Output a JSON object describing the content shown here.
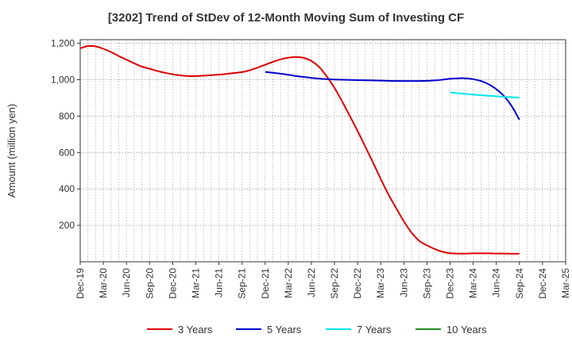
{
  "chart_data": {
    "type": "line",
    "title": "[3202]  Trend of StDev of 12-Month Moving Sum of Investing CF",
    "ylabel": "Amount (million yen)",
    "xlabel": "",
    "ylim": [
      0,
      1220
    ],
    "yticks": [
      200,
      400,
      600,
      800,
      1000,
      1200
    ],
    "ytick_labels": [
      "200",
      "400",
      "600",
      "800",
      "1,000",
      "1,200"
    ],
    "xticks": [
      "Dec-19",
      "Mar-20",
      "Jun-20",
      "Sep-20",
      "Dec-20",
      "Mar-21",
      "Jun-21",
      "Sep-21",
      "Dec-21",
      "Mar-22",
      "Jun-22",
      "Sep-22",
      "Dec-22",
      "Mar-23",
      "Jun-23",
      "Sep-23",
      "Dec-23",
      "Mar-24",
      "Jun-24",
      "Sep-24",
      "Dec-24",
      "Mar-25"
    ],
    "grid": true,
    "legend_position": "bottom",
    "series": [
      {
        "name": "3 Years",
        "color": "#dd0000",
        "x": [
          "Dec-19",
          "Jan-20",
          "Feb-20",
          "Mar-20",
          "Apr-20",
          "May-20",
          "Jun-20",
          "Jul-20",
          "Aug-20",
          "Sep-20",
          "Oct-20",
          "Nov-20",
          "Dec-20",
          "Jan-21",
          "Feb-21",
          "Mar-21",
          "Apr-21",
          "May-21",
          "Jun-21",
          "Jul-21",
          "Aug-21",
          "Sep-21",
          "Oct-21",
          "Nov-21",
          "Dec-21",
          "Jan-22",
          "Feb-22",
          "Mar-22",
          "Apr-22",
          "May-22",
          "Jun-22",
          "Jul-22",
          "Aug-22",
          "Sep-22",
          "Oct-22",
          "Nov-22",
          "Dec-22",
          "Jan-23",
          "Feb-23",
          "Mar-23",
          "Apr-23",
          "May-23",
          "Jun-23",
          "Jul-23",
          "Aug-23",
          "Sep-23",
          "Oct-23",
          "Nov-23",
          "Dec-23",
          "Jan-24",
          "Feb-24",
          "Mar-24",
          "Apr-24",
          "May-24",
          "Jun-24",
          "Jul-24",
          "Aug-24",
          "Sep-24"
        ],
        "values": [
          1172,
          1185,
          1183,
          1170,
          1152,
          1130,
          1110,
          1090,
          1072,
          1060,
          1048,
          1038,
          1030,
          1024,
          1020,
          1020,
          1022,
          1025,
          1028,
          1032,
          1037,
          1042,
          1052,
          1066,
          1082,
          1098,
          1112,
          1121,
          1124,
          1120,
          1103,
          1070,
          1018,
          955,
          880,
          800,
          718,
          632,
          545,
          455,
          370,
          295,
          222,
          160,
          115,
          90,
          70,
          55,
          47,
          45,
          45,
          46,
          46,
          46,
          45,
          45,
          44,
          44
        ]
      },
      {
        "name": "5 Years",
        "color": "#0000cc",
        "x": [
          "Dec-21",
          "Jan-22",
          "Feb-22",
          "Mar-22",
          "Apr-22",
          "May-22",
          "Jun-22",
          "Jul-22",
          "Aug-22",
          "Sep-22",
          "Oct-22",
          "Nov-22",
          "Dec-22",
          "Jan-23",
          "Feb-23",
          "Mar-23",
          "Apr-23",
          "May-23",
          "Jun-23",
          "Jul-23",
          "Aug-23",
          "Sep-23",
          "Oct-23",
          "Nov-23",
          "Dec-23",
          "Jan-24",
          "Feb-24",
          "Mar-24",
          "Apr-24",
          "May-24",
          "Jun-24",
          "Jul-24",
          "Aug-24",
          "Sep-24"
        ],
        "values": [
          1043,
          1038,
          1033,
          1027,
          1020,
          1015,
          1010,
          1006,
          1003,
          1001,
          1000,
          999,
          998,
          997,
          996,
          995,
          994,
          993,
          993,
          993,
          993,
          994,
          996,
          1000,
          1005,
          1008,
          1008,
          1003,
          993,
          975,
          948,
          910,
          855,
          780
        ]
      },
      {
        "name": "7 Years",
        "color": "#00e5ee",
        "x": [
          "Dec-23",
          "Jan-24",
          "Feb-24",
          "Mar-24",
          "Apr-24",
          "May-24",
          "Jun-24",
          "Jul-24",
          "Aug-24",
          "Sep-24"
        ],
        "values": [
          930,
          926,
          922,
          918,
          915,
          912,
          909,
          906,
          904,
          902
        ]
      },
      {
        "name": "10 Years",
        "color": "#228b22",
        "x": [],
        "values": []
      }
    ]
  }
}
